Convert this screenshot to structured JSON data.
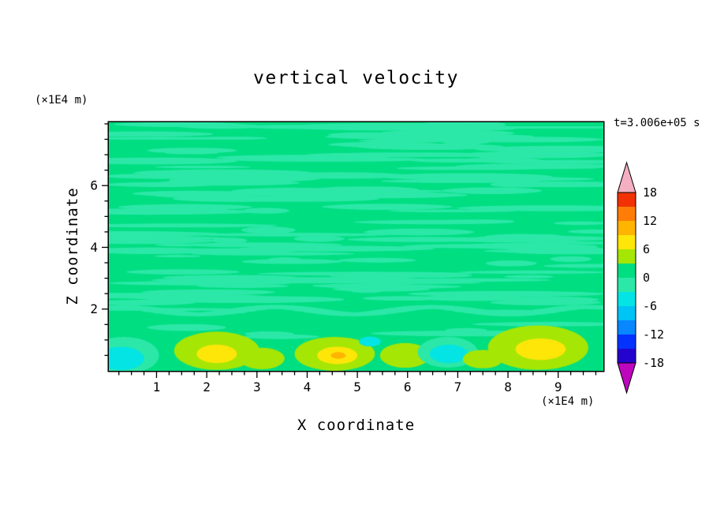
{
  "labels": {
    "title": "vertical velocity",
    "timestamp": "t=3.006e+05 s",
    "xlabel": "X coordinate",
    "ylabel": "Z coordinate",
    "x_unit": "(×1E4 m)",
    "y_unit": "(×1E4 m)"
  },
  "chart_data": {
    "type": "heatmap",
    "title": "vertical velocity",
    "xlabel": "X coordinate (×1E4 m)",
    "ylabel": "Z coordinate (×1E4 m)",
    "time_annotation": "t=3.006e+05 s",
    "xlim": [
      0.05,
      9.9
    ],
    "ylim": [
      0,
      8.05
    ],
    "x_ticks": [
      1,
      2,
      3,
      4,
      5,
      6,
      7,
      8,
      9
    ],
    "x_minor_step": 0.25,
    "y_ticks": [
      2,
      4,
      6
    ],
    "y_minor_step": 0.5,
    "grid": false,
    "colorbar": {
      "position": "right",
      "labels": [
        "18",
        "12",
        "6",
        "0",
        "-6",
        "-12",
        "-18"
      ],
      "levels": [
        -18,
        -15,
        -12,
        -9,
        -6,
        -3,
        0,
        3,
        6,
        9,
        12,
        15,
        18
      ],
      "segment_colors_bottom_to_top": [
        "#2403CE",
        "#0433FF",
        "#0887FF",
        "#00C3F6",
        "#04E4E4",
        "#2CE8A8",
        "#00DE82",
        "#A6E604",
        "#FFE609",
        "#FFB400",
        "#FF7D06",
        "#F23104"
      ],
      "under_arrow_color": "#BD06BD",
      "over_arrow_color": "#F5AFC2"
    },
    "field": {
      "description": "vertical velocity field: near-zero (green, band 0..3) almost everywhere with thin horizontal wave streaks of band -3..0; stronger updraft cells (3..9) and downdraft patches (-6..-3) in the lowest layer z<2",
      "background_band": [
        0,
        3
      ],
      "background_color": "#00DE82",
      "streak_color": "#2CE8A8",
      "seed": 7,
      "streak_groups": [
        {
          "count": 90,
          "z_range": [
            4.2,
            8.0
          ]
        },
        {
          "count": 55,
          "z_range": [
            2.15,
            4.3
          ]
        },
        {
          "count": 8,
          "z_range": [
            1.0,
            2.0
          ]
        }
      ],
      "boundary_band": {
        "z": 1.95,
        "amplitude": 0.12,
        "wavelength": 3.1
      },
      "blobs": [
        {
          "x": 0.35,
          "z": 0.5,
          "rx": 0.7,
          "rz": 0.6,
          "band": [
            -3,
            0
          ],
          "color": "#2CE8A8"
        },
        {
          "x": 0.3,
          "z": 0.4,
          "rx": 0.45,
          "rz": 0.38,
          "band": [
            -6,
            -3
          ],
          "color": "#04E4E4"
        },
        {
          "x": 2.2,
          "z": 0.65,
          "rx": 0.85,
          "rz": 0.62,
          "band": [
            3,
            6
          ],
          "color": "#A6E604"
        },
        {
          "x": 2.2,
          "z": 0.55,
          "rx": 0.4,
          "rz": 0.3,
          "band": [
            6,
            9
          ],
          "color": "#FFE609"
        },
        {
          "x": 3.1,
          "z": 0.4,
          "rx": 0.45,
          "rz": 0.35,
          "band": [
            3,
            6
          ],
          "color": "#A6E604"
        },
        {
          "x": 4.55,
          "z": 0.55,
          "rx": 0.8,
          "rz": 0.55,
          "band": [
            3,
            6
          ],
          "color": "#A6E604"
        },
        {
          "x": 4.6,
          "z": 0.5,
          "rx": 0.4,
          "rz": 0.28,
          "band": [
            6,
            9
          ],
          "color": "#FFE609"
        },
        {
          "x": 4.62,
          "z": 0.5,
          "rx": 0.15,
          "rz": 0.11,
          "band": [
            9,
            12
          ],
          "color": "#FFB400"
        },
        {
          "x": 5.25,
          "z": 0.95,
          "rx": 0.22,
          "rz": 0.16,
          "band": [
            -6,
            -3
          ],
          "color": "#04E4E4"
        },
        {
          "x": 5.95,
          "z": 0.5,
          "rx": 0.5,
          "rz": 0.4,
          "band": [
            3,
            6
          ],
          "color": "#A6E604"
        },
        {
          "x": 6.8,
          "z": 0.6,
          "rx": 0.6,
          "rz": 0.5,
          "band": [
            -3,
            0
          ],
          "color": "#2CE8A8"
        },
        {
          "x": 6.82,
          "z": 0.55,
          "rx": 0.38,
          "rz": 0.3,
          "band": [
            -6,
            -3
          ],
          "color": "#04E4E4"
        },
        {
          "x": 7.5,
          "z": 0.38,
          "rx": 0.4,
          "rz": 0.3,
          "band": [
            3,
            6
          ],
          "color": "#A6E604"
        },
        {
          "x": 8.6,
          "z": 0.75,
          "rx": 1.0,
          "rz": 0.72,
          "band": [
            3,
            6
          ],
          "color": "#A6E604"
        },
        {
          "x": 8.65,
          "z": 0.7,
          "rx": 0.5,
          "rz": 0.35,
          "band": [
            6,
            9
          ],
          "color": "#FFE609"
        }
      ]
    }
  }
}
